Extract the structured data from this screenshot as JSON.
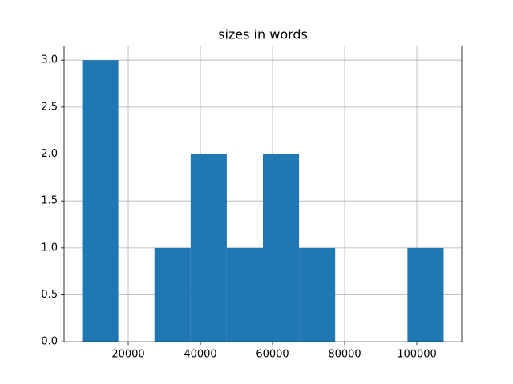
{
  "chart_data": {
    "type": "histogram",
    "title": "sizes in words",
    "bins": [
      7230,
      17250,
      27270,
      37290,
      47310,
      57330,
      67350,
      77370,
      87390,
      97410,
      107430
    ],
    "counts": [
      3,
      0,
      1,
      2,
      1,
      2,
      1,
      0,
      0,
      1
    ],
    "color": "#1f77b4",
    "xlim": [
      2220,
      112440
    ],
    "xticks": [
      20000,
      40000,
      60000,
      80000,
      100000
    ],
    "ylim": [
      0,
      3.15
    ],
    "yticks": [
      {
        "value": 0,
        "label": "0.0"
      },
      0.5,
      {
        "value": 1,
        "label": "1.0"
      },
      1.5,
      {
        "value": 2,
        "label": "2.0"
      },
      2.5,
      {
        "value": 3,
        "label": "3.0"
      }
    ],
    "grid": true
  }
}
